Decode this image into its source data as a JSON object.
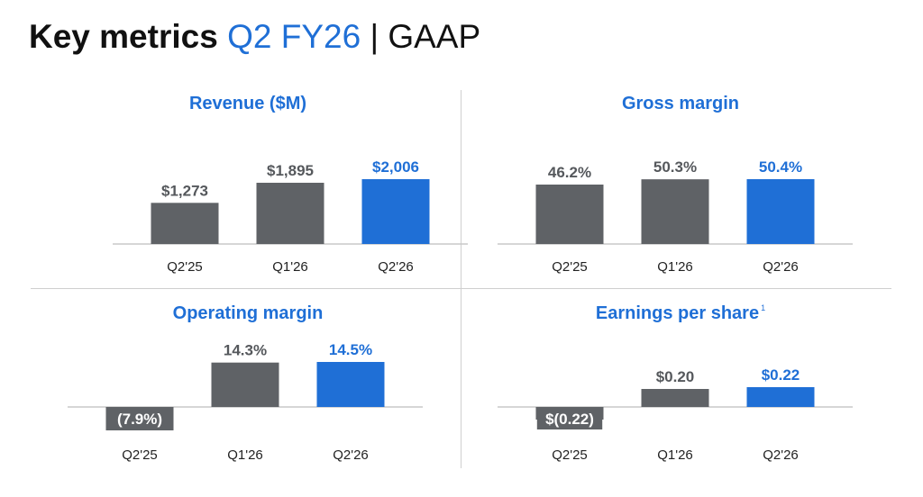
{
  "header": {
    "title_bold": "Key metrics",
    "title_accent": "Q2 FY26",
    "title_rest": "| GAAP"
  },
  "colors": {
    "accent": "#1f6fd6",
    "bar_gray": "#5f6266",
    "text": "#222222",
    "axis": "#c8c8c8"
  },
  "chart_data": [
    {
      "type": "bar",
      "title": "Revenue ($M)",
      "categories": [
        "Q2'25",
        "Q1'26",
        "Q2'26"
      ],
      "values": [
        1273,
        1895,
        2006
      ],
      "labels": [
        "$1,273",
        "$1,895",
        "$2,006"
      ],
      "highlight_index": 2,
      "ylim": [
        0,
        2200
      ]
    },
    {
      "type": "bar",
      "title": "Gross margin",
      "categories": [
        "Q2'25",
        "Q1'26",
        "Q2'26"
      ],
      "values": [
        46.2,
        50.3,
        50.4
      ],
      "labels": [
        "46.2%",
        "50.3%",
        "50.4%"
      ],
      "highlight_index": 2,
      "ylim": [
        0,
        55
      ]
    },
    {
      "type": "bar",
      "title": "Operating margin",
      "categories": [
        "Q2'25",
        "Q1'26",
        "Q2'26"
      ],
      "values": [
        -7.9,
        14.3,
        14.5
      ],
      "labels": [
        "(7.9%)",
        "14.3%",
        "14.5%"
      ],
      "highlight_index": 2,
      "ylim": [
        -9,
        16
      ]
    },
    {
      "type": "bar",
      "title": "Earnings per share",
      "title_footnote": "1",
      "categories": [
        "Q2'25",
        "Q1'26",
        "Q2'26"
      ],
      "values": [
        -0.22,
        0.2,
        0.22
      ],
      "labels": [
        "$(0.22)",
        "$0.20",
        "$0.22"
      ],
      "highlight_index": 2,
      "ylim": [
        -0.5,
        0.5
      ]
    }
  ]
}
